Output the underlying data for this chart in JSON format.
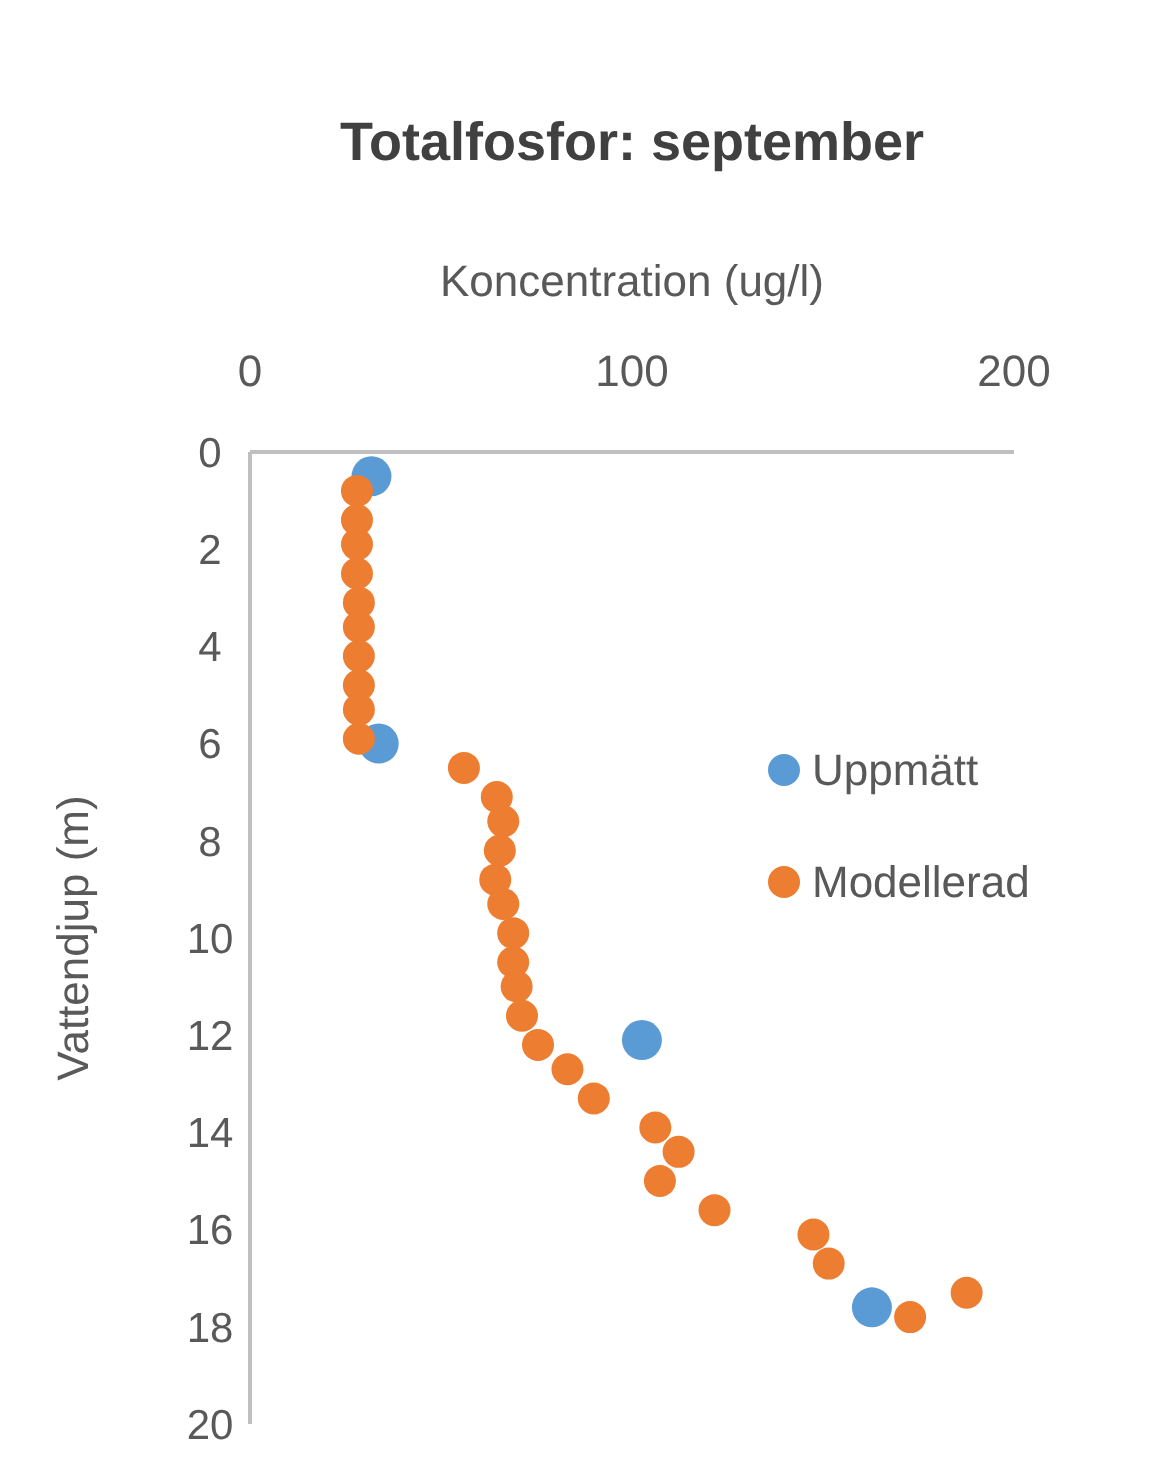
{
  "chart_data": {
    "type": "scatter",
    "title": "Totalfosfor: september",
    "xlabel": "Koncentration (ug/l)",
    "ylabel": "Vattendjup (m)",
    "xlim": [
      0,
      200
    ],
    "xticks": [
      0,
      100,
      200
    ],
    "ylim": [
      20,
      0
    ],
    "yticks": [
      0,
      2,
      4,
      6,
      8,
      10,
      12,
      14,
      16,
      18,
      20
    ],
    "grid": false,
    "legend": "right",
    "marker": "circle",
    "series": [
      {
        "name": "Uppmätt",
        "color": "#5b9bd5",
        "x": [
          31.8,
          33.7,
          102.6,
          162.8
        ],
        "values": [
          0.5,
          6.0,
          12.1,
          17.6
        ]
      },
      {
        "name": "Modellerad",
        "color": "#ed7d31",
        "x": [
          28,
          28,
          28,
          28,
          28.5,
          28.5,
          28.5,
          28.5,
          28.5,
          28.5,
          56,
          64.6,
          66.3,
          65.4,
          64.2,
          66.3,
          68.9,
          68.9,
          69.8,
          71.2,
          75.4,
          83.1,
          90,
          106.1,
          112.2,
          107.3,
          121.6,
          147.5,
          151.5,
          187.6,
          172.8
        ],
        "values": [
          0.8,
          1.4,
          1.9,
          2.5,
          3.1,
          3.6,
          4.2,
          4.8,
          5.3,
          5.9,
          6.5,
          7.1,
          7.6,
          8.2,
          8.8,
          9.3,
          9.9,
          10.5,
          11.0,
          11.6,
          12.2,
          12.7,
          13.3,
          13.9,
          14.4,
          15.0,
          15.6,
          16.1,
          16.7,
          17.3,
          17.8
        ]
      }
    ]
  }
}
